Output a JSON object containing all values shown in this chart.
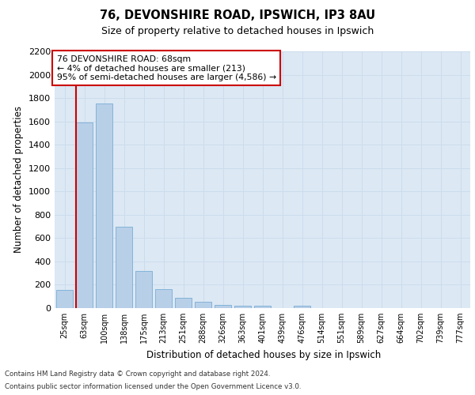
{
  "title1": "76, DEVONSHIRE ROAD, IPSWICH, IP3 8AU",
  "title2": "Size of property relative to detached houses in Ipswich",
  "xlabel": "Distribution of detached houses by size in Ipswich",
  "ylabel": "Number of detached properties",
  "categories": [
    "25sqm",
    "63sqm",
    "100sqm",
    "138sqm",
    "175sqm",
    "213sqm",
    "251sqm",
    "288sqm",
    "326sqm",
    "363sqm",
    "401sqm",
    "439sqm",
    "476sqm",
    "514sqm",
    "551sqm",
    "589sqm",
    "627sqm",
    "664sqm",
    "702sqm",
    "739sqm",
    "777sqm"
  ],
  "values": [
    155,
    1590,
    1755,
    700,
    315,
    160,
    90,
    55,
    30,
    20,
    20,
    0,
    20,
    0,
    0,
    0,
    0,
    0,
    0,
    0,
    0
  ],
  "bar_color": "#b8cfe8",
  "bar_edge_color": "#7aadd4",
  "vline_x_index": 1,
  "vline_color": "#cc0000",
  "annotation_line1": "76 DEVONSHIRE ROAD: 68sqm",
  "annotation_line2": "← 4% of detached houses are smaller (213)",
  "annotation_line3": "95% of semi-detached houses are larger (4,586) →",
  "annotation_box_color": "#ffffff",
  "annotation_box_edge": "#cc0000",
  "ylim": [
    0,
    2200
  ],
  "yticks": [
    0,
    200,
    400,
    600,
    800,
    1000,
    1200,
    1400,
    1600,
    1800,
    2000,
    2200
  ],
  "grid_color": "#ccdcec",
  "background_color": "#dce8f4",
  "footer_line1": "Contains HM Land Registry data © Crown copyright and database right 2024.",
  "footer_line2": "Contains public sector information licensed under the Open Government Licence v3.0."
}
